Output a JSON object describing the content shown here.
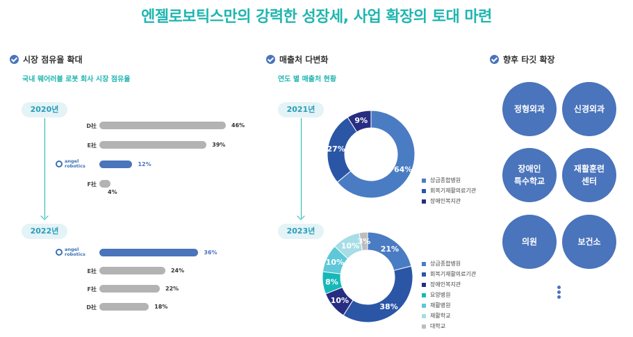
{
  "title": "엔젤로보틱스만의 강력한 성장세, 사업 확장의 토대 마련",
  "colors": {
    "accent": "#1fb5b0",
    "primary": "#4a74bb",
    "gray": "#b3b3b3"
  },
  "sections": {
    "market": {
      "heading": "시장 점유율 확대",
      "subtitle": "국내 웨어러블 로봇 회사 시장 점유율"
    },
    "customers": {
      "heading": "매출처 다변화",
      "subtitle": "연도 별 매출처 현황"
    },
    "targets": {
      "heading": "향후 타깃 확장"
    }
  },
  "logo": {
    "line1": "angel",
    "line2": "robotics"
  },
  "chart_data": [
    {
      "type": "bar",
      "title": "국내 웨어러블 로봇 회사 시장 점유율",
      "period": "2020년",
      "categories": [
        "D社",
        "E社",
        "angel robotics",
        "F社"
      ],
      "values": [
        46,
        39,
        12,
        4
      ],
      "value_labels": [
        "46%",
        "39%",
        "12%",
        "4%"
      ],
      "highlight": "angel robotics"
    },
    {
      "type": "bar",
      "title": "국내 웨어러블 로봇 회사 시장 점유율",
      "period": "2022년",
      "categories": [
        "angel robotics",
        "E社",
        "F社",
        "D社"
      ],
      "values": [
        36,
        24,
        22,
        18
      ],
      "value_labels": [
        "36%",
        "24%",
        "22%",
        "18%"
      ],
      "highlight": "angel robotics"
    },
    {
      "type": "pie",
      "title": "연도 별 매출처 현황",
      "period": "2021년",
      "labels": [
        "상급종합병원",
        "회복기재활의료기관",
        "장애인복지관"
      ],
      "values": [
        64,
        27,
        9
      ],
      "value_labels": [
        "64%",
        "27%",
        "9%"
      ],
      "colors": [
        "#4a7cc4",
        "#2b56a6",
        "#272d82"
      ]
    },
    {
      "type": "pie",
      "title": "연도 별 매출처 현황",
      "period": "2023년",
      "labels": [
        "상급종합병원",
        "회복기재활의료기관",
        "장애인복지관",
        "요양병원",
        "재활병원",
        "재활학교",
        "대학교"
      ],
      "values": [
        21,
        38,
        10,
        8,
        10,
        10,
        3
      ],
      "value_labels": [
        "21%",
        "38%",
        "10%",
        "8%",
        "10%",
        "10%",
        "3%"
      ],
      "colors": [
        "#4a7cc4",
        "#2b56a6",
        "#272d82",
        "#16b8b8",
        "#5ec8d8",
        "#a6dde6",
        "#bdbdbd"
      ]
    }
  ],
  "targets": [
    "정형외과",
    "신경외과",
    "장애인\n특수학교",
    "재활훈련\n센터",
    "의원",
    "보건소"
  ]
}
